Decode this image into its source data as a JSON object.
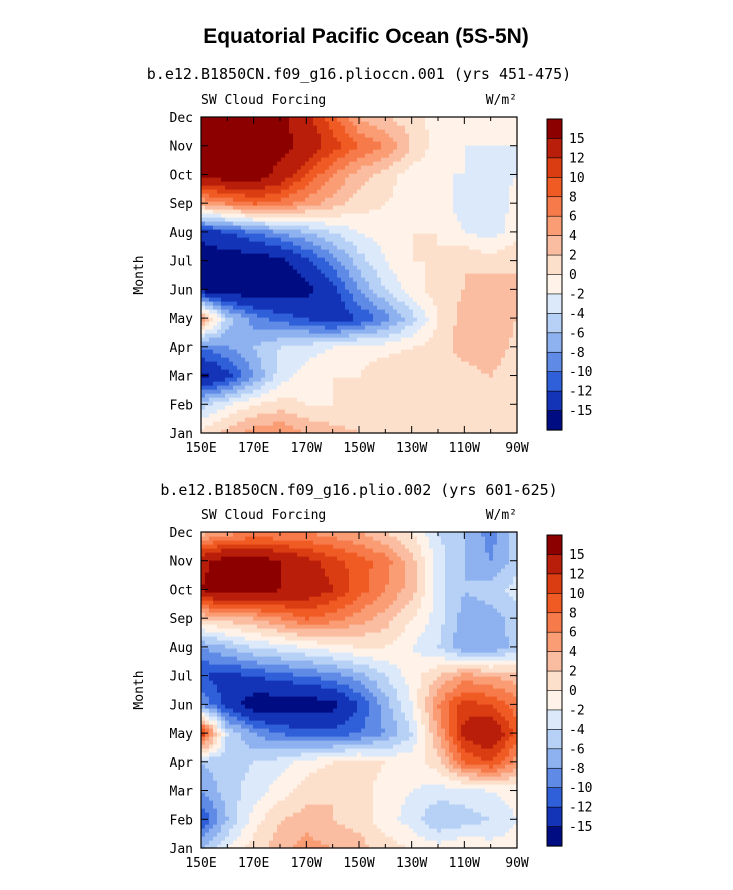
{
  "figure_title": "Equatorial Pacific Ocean (5S-5N)",
  "chart_data": [
    {
      "type": "heatmap",
      "title": "b.e12.B1850CN.f09_g16.plioccn.001 (yrs 451-475)",
      "left_label": "SW Cloud Forcing",
      "units_label": "W/m²",
      "ylabel": "Month",
      "x_ticks": [
        "150E",
        "170E",
        "170W",
        "150W",
        "130W",
        "110W",
        "90W"
      ],
      "y_ticks": [
        "Jan",
        "Feb",
        "Mar",
        "Apr",
        "May",
        "Jun",
        "Jul",
        "Aug",
        "Sep",
        "Oct",
        "Nov",
        "Dec"
      ],
      "colorbar_labels": [
        "15",
        "12",
        "10",
        "8",
        "6",
        "4",
        "2",
        "0",
        "-2",
        "-4",
        "-6",
        "-8",
        "-10",
        "-12",
        "-15"
      ],
      "colorbar_colors": [
        "#8c0000",
        "#b91e0a",
        "#db3d12",
        "#f05a23",
        "#f77a4b",
        "#fa9c74",
        "#fbbda1",
        "#fde0cc",
        "#fff3e9",
        "#dbe9fa",
        "#b6d0f6",
        "#8eb1ef",
        "#5f8be6",
        "#2f5fd9",
        "#1434b8",
        "#000c82"
      ],
      "zlim": [
        -15,
        15
      ],
      "x": [
        150,
        160,
        170,
        180,
        190,
        200,
        210,
        220,
        230,
        240,
        250,
        260,
        270
      ],
      "y": [
        1,
        2,
        3,
        4,
        5,
        6,
        7,
        8,
        9,
        10,
        11,
        12
      ],
      "z": [
        [
          1,
          3,
          5,
          6,
          4,
          3,
          2,
          1,
          0,
          1,
          1,
          0,
          0
        ],
        [
          -5,
          -2,
          0,
          1,
          0,
          0,
          0,
          1,
          1,
          1,
          0,
          0,
          0
        ],
        [
          -16,
          -13,
          -8,
          -3,
          -1,
          0,
          0,
          2,
          2,
          1,
          1,
          2,
          0
        ],
        [
          -10,
          -8,
          -6,
          -4,
          -3,
          -2,
          -1,
          -1,
          0,
          1,
          3,
          4,
          1
        ],
        [
          6,
          -5,
          -9,
          -11,
          -12,
          -14,
          -12,
          -9,
          -5,
          0,
          3,
          4,
          2
        ],
        [
          -16,
          -17,
          -17,
          -17,
          -16,
          -13,
          -8,
          -4,
          -1,
          1,
          2,
          3,
          2
        ],
        [
          -17,
          -17,
          -17,
          -16,
          -13,
          -9,
          -5,
          -2,
          0,
          0,
          2,
          1,
          2
        ],
        [
          -14,
          -12,
          -10,
          -8,
          -6,
          -4,
          -2,
          -1,
          0,
          0,
          -2,
          -3,
          -1
        ],
        [
          4,
          6,
          8,
          7,
          5,
          3,
          1,
          0,
          -1,
          -1,
          -3,
          -4,
          -1
        ],
        [
          16,
          17,
          17,
          14,
          10,
          6,
          3,
          1,
          -1,
          -2,
          -2,
          -3,
          -2
        ],
        [
          16,
          17,
          17,
          16,
          14,
          11,
          8,
          6,
          2,
          -1,
          -2,
          -2,
          -2
        ],
        [
          16,
          17,
          17,
          16,
          13,
          9,
          4,
          2,
          1,
          -1,
          -1,
          -1,
          -1
        ]
      ]
    },
    {
      "type": "heatmap",
      "title": "b.e12.B1850CN.f09_g16.plio.002 (yrs 601-625)",
      "left_label": "SW Cloud Forcing",
      "units_label": "W/m²",
      "ylabel": "Month",
      "x_ticks": [
        "150E",
        "170E",
        "170W",
        "150W",
        "130W",
        "110W",
        "90W"
      ],
      "y_ticks": [
        "Jan",
        "Feb",
        "Mar",
        "Apr",
        "May",
        "Jun",
        "Jul",
        "Aug",
        "Sep",
        "Oct",
        "Nov",
        "Dec"
      ],
      "colorbar_labels": [
        "15",
        "12",
        "10",
        "8",
        "6",
        "4",
        "2",
        "0",
        "-2",
        "-4",
        "-6",
        "-8",
        "-10",
        "-12",
        "-15"
      ],
      "colorbar_colors": [
        "#8c0000",
        "#b91e0a",
        "#db3d12",
        "#f05a23",
        "#f77a4b",
        "#fa9c74",
        "#fbbda1",
        "#fde0cc",
        "#fff3e9",
        "#dbe9fa",
        "#b6d0f6",
        "#8eb1ef",
        "#5f8be6",
        "#2f5fd9",
        "#1434b8",
        "#000c82"
      ],
      "zlim": [
        -15,
        15
      ],
      "x": [
        150,
        160,
        170,
        180,
        190,
        200,
        210,
        220,
        230,
        240,
        250,
        260,
        270
      ],
      "y": [
        1,
        2,
        3,
        4,
        5,
        6,
        7,
        8,
        9,
        10,
        11,
        12
      ],
      "z": [
        [
          -6,
          -2,
          1,
          3,
          5,
          4,
          3,
          1,
          0,
          -1,
          0,
          -1,
          -1
        ],
        [
          -12,
          -6,
          -1,
          2,
          3,
          2,
          1,
          -1,
          -3,
          -6,
          -5,
          -4,
          -2
        ],
        [
          -8,
          -5,
          -3,
          -1,
          1,
          2,
          1,
          -1,
          -2,
          -3,
          -3,
          -2,
          -1
        ],
        [
          -6,
          -5,
          -4,
          -3,
          -1,
          0,
          1,
          0,
          -1,
          1,
          8,
          10,
          5
        ],
        [
          12,
          -4,
          -8,
          -10,
          -11,
          -11,
          -10,
          -8,
          -4,
          4,
          13,
          15,
          9
        ],
        [
          -8,
          -13,
          -17,
          -17,
          -17,
          -16,
          -12,
          -7,
          -2,
          6,
          11,
          10,
          7
        ],
        [
          -12,
          -13,
          -12,
          -11,
          -10,
          -9,
          -7,
          -4,
          -1,
          2,
          5,
          4,
          3
        ],
        [
          -8,
          -6,
          -4,
          -3,
          -2,
          -1,
          0,
          0,
          -2,
          -4,
          -8,
          -8,
          -5
        ],
        [
          2,
          3,
          4,
          6,
          8,
          7,
          5,
          3,
          0,
          -3,
          -7,
          -7,
          -5
        ],
        [
          15,
          17,
          17,
          15,
          14,
          12,
          9,
          6,
          3,
          -3,
          -6,
          -5,
          -3
        ],
        [
          14,
          17,
          17,
          15,
          13,
          11,
          9,
          7,
          3,
          -3,
          -6,
          -8,
          -5
        ],
        [
          3,
          5,
          6,
          6,
          6,
          5,
          4,
          2,
          0,
          -4,
          -6,
          -9,
          -5
        ]
      ]
    }
  ]
}
